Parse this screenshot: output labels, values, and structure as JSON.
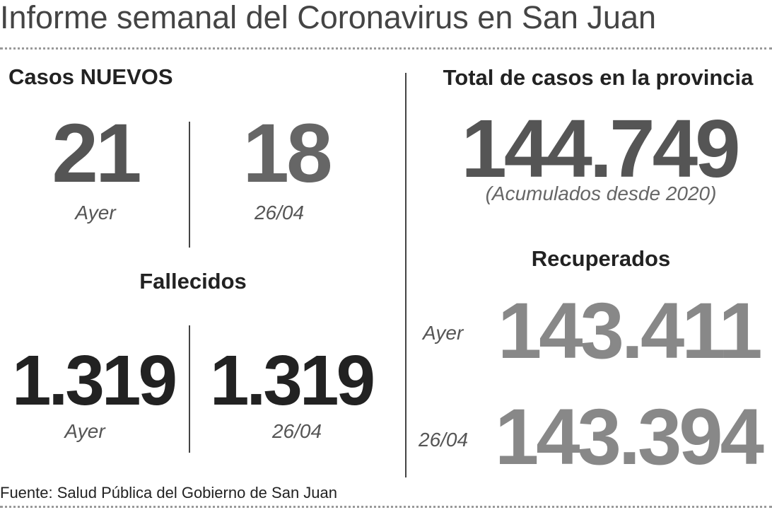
{
  "header": {
    "title": "Informe semanal del Coronavirus en San Juan"
  },
  "casos_nuevos": {
    "title": "Casos NUEVOS",
    "items": [
      {
        "value": "21",
        "label": "Ayer"
      },
      {
        "value": "18",
        "label": "26/04"
      }
    ]
  },
  "fallecidos": {
    "title": "Fallecidos",
    "items": [
      {
        "value": "1.319",
        "label": "Ayer"
      },
      {
        "value": "1.319",
        "label": "26/04"
      }
    ]
  },
  "total": {
    "title": "Total de casos en la provincia",
    "value": "144.749",
    "note": "(Acumulados desde 2020)"
  },
  "recuperados": {
    "title": "Recuperados",
    "items": [
      {
        "label": "Ayer",
        "value": "143.411"
      },
      {
        "label": "26/04",
        "value": "143.394"
      }
    ]
  },
  "footer": {
    "source": "Fuente: Salud Pública del Gobierno de San Juan"
  }
}
